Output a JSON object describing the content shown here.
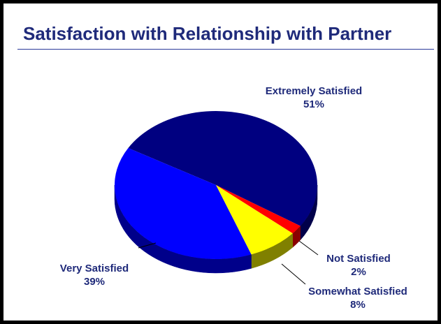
{
  "title": "Satisfaction with Relationship with Partner",
  "colors": {
    "title_text": "#1f2a7a",
    "title_rule": "#2b3a9a",
    "label_text": "#1f2a7a",
    "frame": "#000000",
    "slide_background": "#ffffff"
  },
  "chart_data": {
    "type": "pie",
    "title": "Satisfaction with Relationship with Partner",
    "three_d": true,
    "slices": [
      {
        "label": "Extremely Satisfied",
        "value": 51,
        "percent_label": "51%",
        "color": "#000080",
        "side_color": "#00004a"
      },
      {
        "label": "Not Satisfied",
        "value": 2,
        "percent_label": "2%",
        "color": "#ff0000",
        "side_color": "#8a0000"
      },
      {
        "label": "Somewhat Satisfied",
        "value": 8,
        "percent_label": "8%",
        "color": "#ffff00",
        "side_color": "#808000"
      },
      {
        "label": "Very Satisfied",
        "value": 39,
        "percent_label": "39%",
        "color": "#0000ff",
        "side_color": "#00008a"
      }
    ]
  }
}
